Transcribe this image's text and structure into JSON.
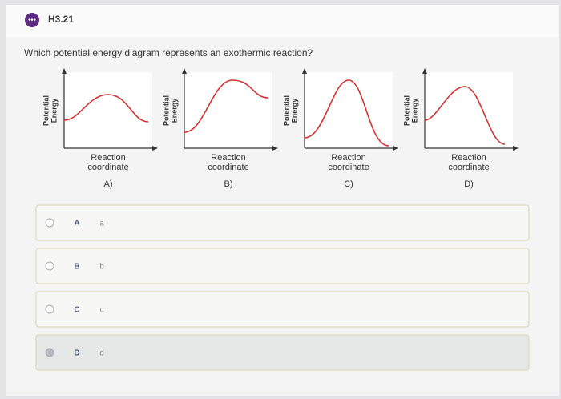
{
  "header": {
    "title": "H3.21"
  },
  "question": "Which potential energy diagram represents an exothermic reaction?",
  "diagrams": [
    {
      "y_label": [
        "Potential",
        "Energy"
      ],
      "x_label": [
        "Reaction",
        "coordinate"
      ],
      "caption": "A)"
    },
    {
      "y_label": [
        "Potential",
        "Energy"
      ],
      "x_label": [
        "Reaction",
        "coordinate"
      ],
      "caption": "B)"
    },
    {
      "y_label": [
        "Potential",
        "Energy"
      ],
      "x_label": [
        "Reaction",
        "coordinate"
      ],
      "caption": "C)"
    },
    {
      "y_label": [
        "Potential",
        "Energy"
      ],
      "x_label": [
        "Reaction",
        "coordinate"
      ],
      "caption": "D)"
    }
  ],
  "options": [
    {
      "letter": "A",
      "text": "a"
    },
    {
      "letter": "B",
      "text": "b"
    },
    {
      "letter": "C",
      "text": "c"
    },
    {
      "letter": "D",
      "text": "d"
    }
  ]
}
